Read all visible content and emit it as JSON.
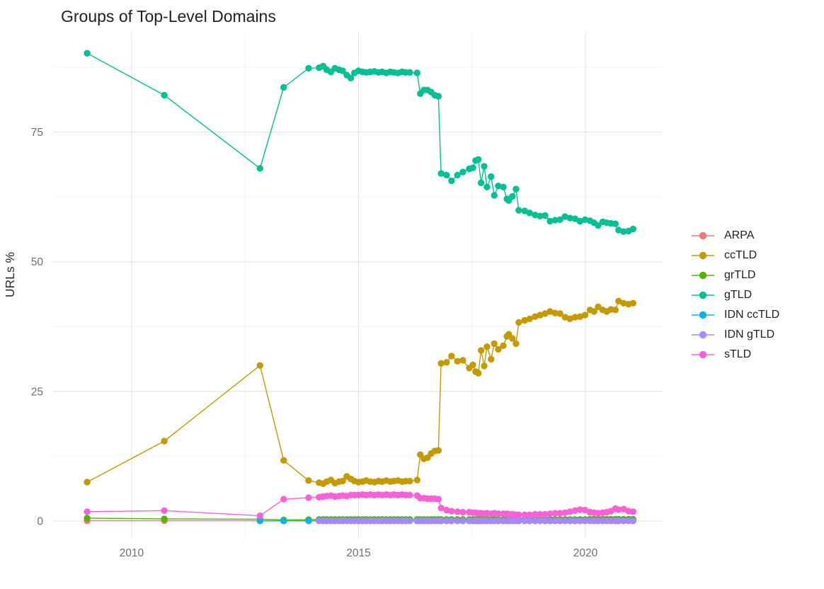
{
  "chart_data": {
    "type": "line",
    "title": "Groups of Top-Level Domains",
    "xlabel": "",
    "ylabel": "URLs %",
    "legend_position": "right",
    "grid": true,
    "background": "#ffffff",
    "x_ticks": [
      2010,
      2015,
      2020
    ],
    "x_minor": [
      2012.5,
      2017.5
    ],
    "y_ticks": [
      0,
      25,
      50,
      75
    ],
    "y_minor": [
      12.5,
      37.5,
      62.5,
      87.5
    ],
    "xlim": [
      2008.27,
      2021.7
    ],
    "ylim": [
      -3.28,
      94.18
    ],
    "x": [
      2009.02,
      2010.72,
      2012.83,
      2013.35,
      2013.9,
      2014.13,
      2014.22,
      2014.3,
      2014.39,
      2014.48,
      2014.57,
      2014.65,
      2014.74,
      2014.83,
      2014.91,
      2015.0,
      2015.09,
      2015.17,
      2015.26,
      2015.35,
      2015.44,
      2015.52,
      2015.61,
      2015.7,
      2015.78,
      2015.87,
      2015.96,
      2016.04,
      2016.13,
      2016.29,
      2016.36,
      2016.44,
      2016.52,
      2016.6,
      2016.68,
      2016.76,
      2016.82,
      2016.94,
      2017.05,
      2017.18,
      2017.3,
      2017.44,
      2017.52,
      2017.58,
      2017.64,
      2017.7,
      2017.77,
      2017.83,
      2017.92,
      2017.99,
      2018.08,
      2018.19,
      2018.27,
      2018.31,
      2018.39,
      2018.47,
      2018.53,
      2018.66,
      2018.77,
      2018.89,
      2019.0,
      2019.11,
      2019.22,
      2019.33,
      2019.44,
      2019.55,
      2019.66,
      2019.77,
      2019.88,
      2019.99,
      2020.1,
      2020.19,
      2020.28,
      2020.38,
      2020.47,
      2020.56,
      2020.66,
      2020.73,
      2020.84,
      2020.95,
      2021.05
    ],
    "series": [
      {
        "name": "ARPA",
        "color": "#F8766D",
        "values": [
          0.05,
          0.05,
          0.05,
          0.03,
          0.03,
          0.02,
          0.02,
          0.02,
          0.02,
          0.02,
          0.02,
          0.02,
          0.02,
          0.02,
          0.02,
          0.02,
          0.02,
          0.02,
          0.02,
          0.02,
          0.02,
          0.02,
          0.02,
          0.02,
          0.02,
          0.02,
          0.02,
          0.02,
          0.02,
          0.02,
          0.02,
          0.02,
          0.02,
          0.02,
          0.02,
          0.02,
          0.02,
          0.02,
          0.02,
          0.02,
          0.02,
          0.02,
          0.02,
          0.02,
          0.02,
          0.02,
          0.02,
          0.02,
          0.02,
          0.02,
          0.02,
          0.02,
          0.02,
          0.02,
          0.02,
          0.02,
          0.02,
          0.02,
          0.02,
          0.02,
          0.02,
          0.02,
          0.02,
          0.02,
          0.02,
          0.02,
          0.02,
          0.02,
          0.02,
          0.02,
          0.02,
          0.02,
          0.02,
          0.02,
          0.02,
          0.02,
          0.02,
          0.02,
          0.02,
          0.02,
          0.02
        ]
      },
      {
        "name": "ccTLD",
        "color": "#C49A00",
        "values": [
          7.5,
          15.4,
          30,
          11.7,
          7.8,
          7.4,
          7.2,
          7.6,
          7.9,
          7.3,
          7.6,
          7.7,
          8.6,
          8.1,
          7.7,
          7.5,
          7.6,
          7.8,
          7.6,
          7.5,
          7.7,
          7.6,
          7.8,
          7.6,
          7.7,
          7.8,
          7.6,
          7.7,
          7.7,
          7.9,
          12.8,
          12,
          12.2,
          13,
          13.5,
          13.6,
          30.4,
          30.6,
          31.8,
          30.8,
          31,
          29.5,
          30.1,
          28.8,
          28.5,
          32.9,
          29.9,
          33.6,
          31.2,
          34.2,
          33.1,
          33.8,
          35.6,
          36,
          35.2,
          34.2,
          38.3,
          38.7,
          39,
          39.4,
          39.7,
          40,
          40.4,
          40.1,
          40,
          39.3,
          39,
          39.3,
          39.4,
          39.7,
          40.7,
          40.4,
          41.3,
          40.7,
          40.4,
          40.8,
          40.7,
          42.4,
          42,
          41.8,
          42
        ]
      },
      {
        "name": "grTLD",
        "color": "#53B400",
        "values": [
          0.55,
          0.4,
          0.35,
          0.2,
          0.25,
          0.3,
          0.3,
          0.3,
          0.3,
          0.3,
          0.3,
          0.3,
          0.3,
          0.3,
          0.3,
          0.3,
          0.3,
          0.3,
          0.3,
          0.3,
          0.3,
          0.3,
          0.3,
          0.3,
          0.3,
          0.3,
          0.3,
          0.3,
          0.3,
          0.3,
          0.3,
          0.3,
          0.3,
          0.3,
          0.3,
          0.3,
          0.3,
          0.3,
          0.3,
          0.3,
          0.3,
          0.3,
          0.3,
          0.3,
          0.3,
          0.3,
          0.3,
          0.3,
          0.3,
          0.3,
          0.3,
          0.3,
          0.3,
          0.3,
          0.3,
          0.3,
          0.3,
          0.3,
          0.3,
          0.3,
          0.3,
          0.3,
          0.3,
          0.3,
          0.3,
          0.3,
          0.3,
          0.3,
          0.3,
          0.3,
          0.35,
          0.35,
          0.35,
          0.35,
          0.35,
          0.35,
          0.35,
          0.35,
          0.35,
          0.35,
          0.35
        ]
      },
      {
        "name": "gTLD",
        "color": "#00C094",
        "values": [
          90.2,
          82.1,
          68,
          83.6,
          87.3,
          87.4,
          87.7,
          87,
          86.6,
          87.3,
          87,
          86.8,
          86,
          85.4,
          86.4,
          86.8,
          86.6,
          86.5,
          86.6,
          86.7,
          86.5,
          86.6,
          86.4,
          86.6,
          86.5,
          86.4,
          86.6,
          86.5,
          86.5,
          86.4,
          82.4,
          83.1,
          83.1,
          82.7,
          82.1,
          81.9,
          67,
          66.7,
          65.6,
          66.7,
          67.3,
          67.9,
          68.1,
          69.5,
          69.7,
          65.2,
          68.4,
          64.4,
          66.4,
          62.8,
          64.6,
          64.4,
          62.1,
          61.8,
          62.6,
          64,
          59.9,
          59.8,
          59.4,
          59,
          58.8,
          58.9,
          57.8,
          58,
          58.1,
          58.7,
          58.4,
          58.3,
          57.8,
          58.1,
          57.9,
          57.5,
          57,
          57.7,
          57.5,
          57.4,
          57.3,
          56.1,
          55.8,
          55.9,
          56.3
        ]
      },
      {
        "name": "IDN ccTLD",
        "color": "#00B6EB",
        "values": [
          null,
          null,
          0.02,
          0.03,
          0.04,
          0.05,
          0.05,
          0.05,
          0.05,
          0.05,
          0.05,
          0.05,
          0.05,
          0.05,
          0.05,
          0.05,
          0.05,
          0.05,
          0.05,
          0.05,
          0.05,
          0.05,
          0.05,
          0.05,
          0.05,
          0.05,
          0.05,
          0.05,
          0.05,
          0.05,
          0.05,
          0.05,
          0.05,
          0.05,
          0.05,
          0.05,
          0.05,
          0.05,
          0.05,
          0.05,
          0.05,
          0.05,
          0.05,
          0.05,
          0.05,
          0.05,
          0.05,
          0.05,
          0.05,
          0.05,
          0.05,
          0.05,
          0.05,
          0.05,
          0.05,
          0.05,
          0.05,
          0.05,
          0.05,
          0.05,
          0.05,
          0.05,
          0.05,
          0.05,
          0.05,
          0.05,
          0.05,
          0.05,
          0.05,
          0.05,
          0.05,
          0.05,
          0.05,
          0.05,
          0.05,
          0.05,
          0.05,
          0.05,
          0.05,
          0.05,
          0.05
        ]
      },
      {
        "name": "IDN gTLD",
        "color": "#A58AFF",
        "values": [
          null,
          null,
          null,
          null,
          null,
          0.02,
          0.02,
          0.02,
          0.02,
          0.02,
          0.02,
          0.02,
          0.02,
          0.02,
          0.02,
          0.02,
          0.02,
          0.02,
          0.02,
          0.02,
          0.02,
          0.02,
          0.02,
          0.02,
          0.02,
          0.02,
          0.02,
          0.02,
          0.02,
          0.02,
          0.02,
          0.02,
          0.02,
          0.02,
          0.02,
          0.02,
          0.02,
          0.02,
          0.02,
          0.02,
          0.02,
          0.02,
          0.02,
          0.02,
          0.02,
          0.02,
          0.02,
          0.02,
          0.02,
          0.02,
          0.02,
          0.02,
          0.02,
          0.02,
          0.02,
          0.02,
          0.02,
          0.02,
          0.02,
          0.02,
          0.02,
          0.02,
          0.02,
          0.02,
          0.02,
          0.02,
          0.02,
          0.02,
          0.02,
          0.02,
          0.02,
          0.02,
          0.02,
          0.02,
          0.02,
          0.02,
          0.02,
          0.02,
          0.02,
          0.02,
          0.02
        ]
      },
      {
        "name": "sTLD",
        "color": "#FB61D7",
        "values": [
          1.8,
          2,
          1,
          4.2,
          4.5,
          4.6,
          4.7,
          4.8,
          4.9,
          4.7,
          4.8,
          4.9,
          4.8,
          5,
          5,
          5,
          5.1,
          5,
          5.1,
          5,
          5.1,
          5,
          5.1,
          5,
          5.1,
          5,
          5.1,
          5,
          5,
          4.9,
          4.4,
          4.4,
          4.3,
          4.3,
          4.3,
          4.2,
          2.5,
          2.1,
          1.9,
          1.8,
          1.7,
          1.7,
          1.6,
          1.6,
          1.5,
          1.5,
          1.4,
          1.5,
          1.4,
          1.5,
          1.4,
          1.4,
          1.4,
          1.3,
          1.3,
          1.2,
          1.2,
          1.2,
          1.2,
          1.3,
          1.3,
          1.3,
          1.4,
          1.5,
          1.5,
          1.6,
          1.8,
          2,
          2.2,
          2.1,
          1.7,
          1.6,
          1.5,
          1.6,
          1.7,
          1.9,
          2.4,
          2.2,
          2.3,
          1.9,
          1.8
        ]
      }
    ]
  }
}
